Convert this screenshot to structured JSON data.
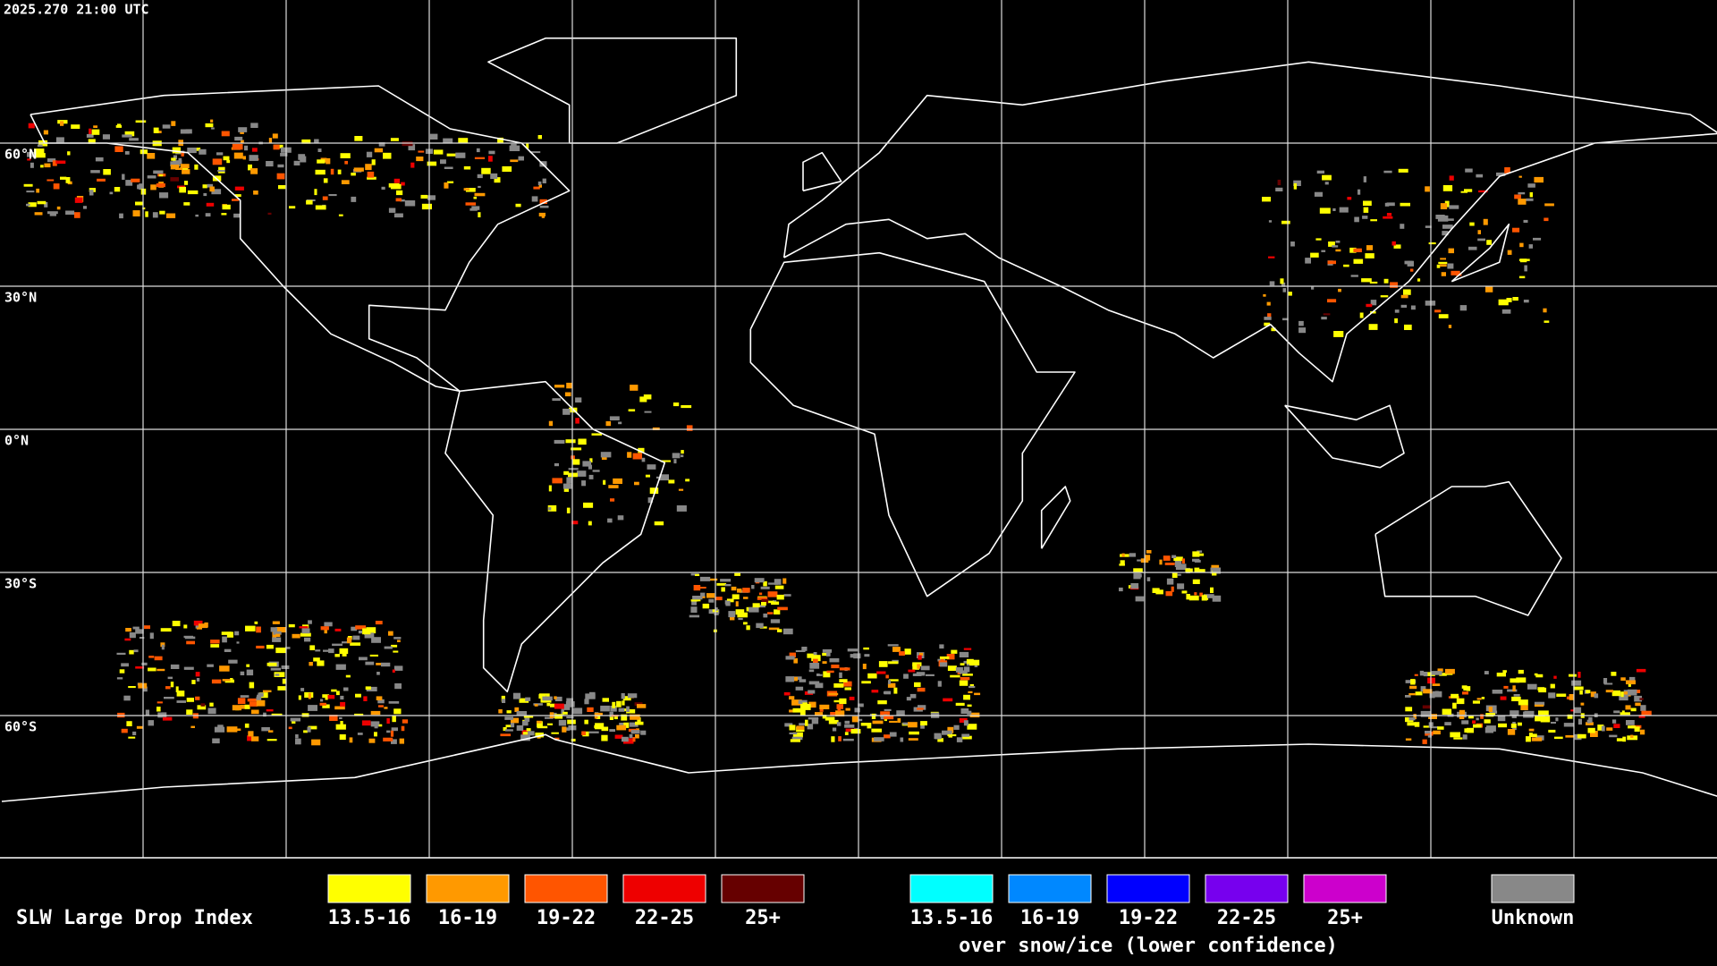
{
  "header": {
    "timestamp": "2025.270 21:00 UTC"
  },
  "map": {
    "lat_labels": [
      "60°N",
      "30°N",
      "0°N",
      "30°S",
      "60°S"
    ]
  },
  "legend": {
    "title": "SLW Large Drop Index",
    "groups": [
      {
        "items": [
          {
            "label": "13.5-16",
            "color": "#ffff00"
          },
          {
            "label": "16-19",
            "color": "#ff9900"
          },
          {
            "label": "19-22",
            "color": "#ff5500"
          },
          {
            "label": "22-25",
            "color": "#ee0000"
          },
          {
            "label": "25+",
            "color": "#660000"
          }
        ]
      },
      {
        "items": [
          {
            "label": "13.5-16",
            "color": "#00ffff"
          },
          {
            "label": "16-19",
            "color": "#0088ff"
          },
          {
            "label": "19-22",
            "color": "#0000ff"
          },
          {
            "label": "22-25",
            "color": "#7700ee"
          },
          {
            "label": "25+",
            "color": "#cc00cc"
          }
        ],
        "note": "over snow/ice (lower confidence)"
      }
    ],
    "unknown": {
      "label": "Unknown",
      "color": "#888888"
    }
  }
}
